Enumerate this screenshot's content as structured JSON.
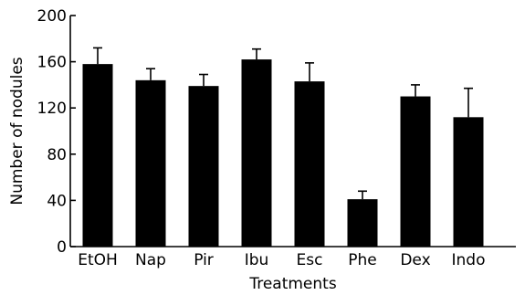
{
  "chart_data": {
    "type": "bar",
    "title": "",
    "xlabel": "Treatments",
    "ylabel": "Number of nodules",
    "ylim": [
      0,
      200
    ],
    "yticks": [
      0,
      40,
      80,
      120,
      160,
      200
    ],
    "categories": [
      "EtOH",
      "Nap",
      "Pir",
      "Ibu",
      "Esc",
      "Phe",
      "Dex",
      "Indo"
    ],
    "values": [
      158,
      144,
      139,
      162,
      143,
      41,
      130,
      112
    ],
    "error_upper": [
      14,
      10,
      10,
      9,
      16,
      7,
      10,
      25
    ],
    "grid": false,
    "legend": "none",
    "bar_color": "#000000"
  }
}
